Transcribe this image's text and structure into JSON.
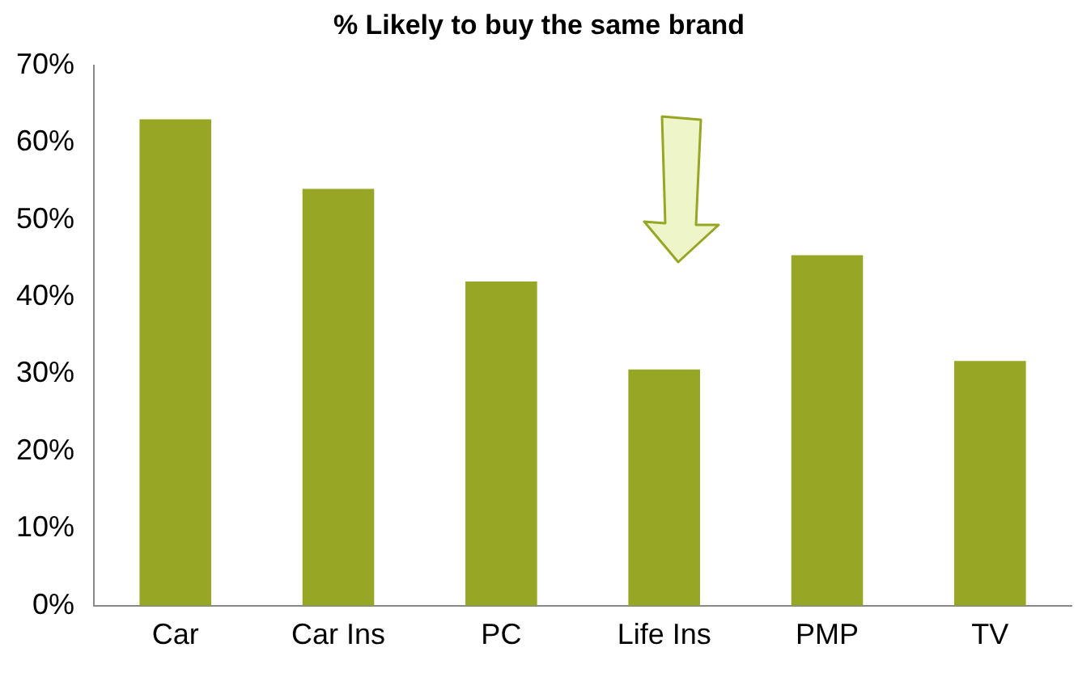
{
  "chart_data": {
    "type": "bar",
    "title": "% Likely to buy the same brand",
    "categories": [
      "Car",
      "Car Ins",
      "PC",
      "Life Ins",
      "PMP",
      "TV"
    ],
    "values": [
      63,
      54,
      42,
      30.6,
      45.4,
      31.7
    ],
    "color": "#97a624",
    "ylim": [
      0,
      70
    ],
    "yticks": [
      {
        "value": 0,
        "label": "0%"
      },
      {
        "value": 10,
        "label": "10%"
      },
      {
        "value": 20,
        "label": "20%"
      },
      {
        "value": 30,
        "label": "30%"
      },
      {
        "value": 40,
        "label": "40%"
      },
      {
        "value": 50,
        "label": "50%"
      },
      {
        "value": 60,
        "label": "60%"
      },
      {
        "value": 70,
        "label": "70%"
      }
    ],
    "grid": false,
    "legend": false
  }
}
